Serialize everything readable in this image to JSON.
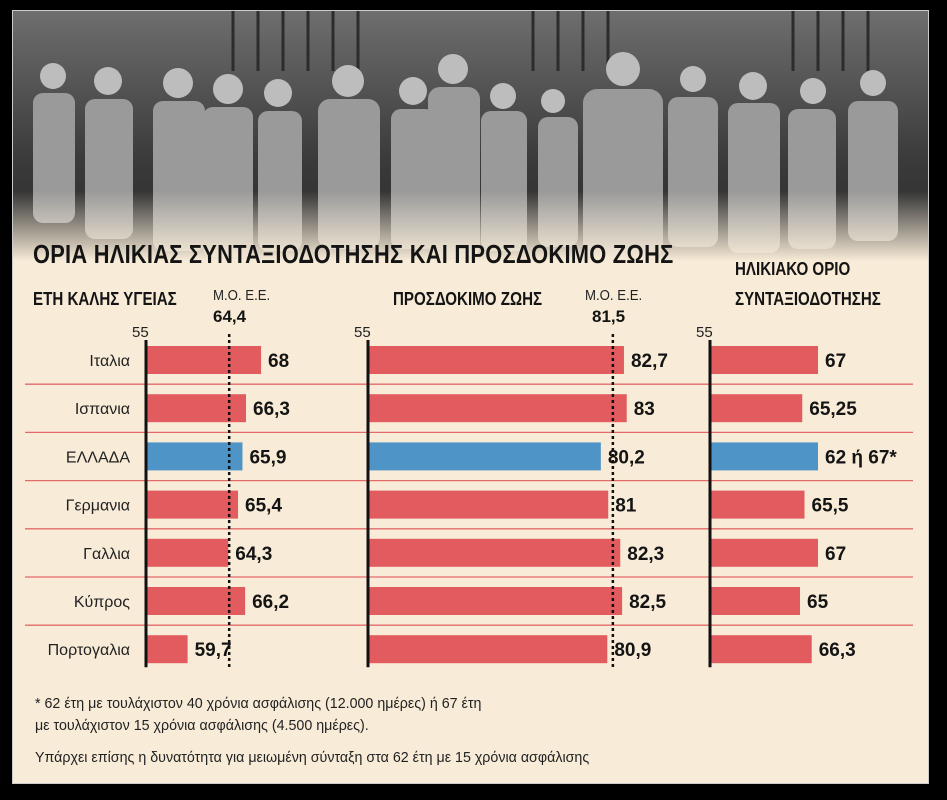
{
  "title": "ΟΡΙΑ ΗΛΙΚΙΑΣ ΣΥΝΤΑΞΙΟΔΟΤΗΣΗΣ ΚΑΙ ΠΡΟΣΔΟΚΙΜΟ ΖΩΗΣ",
  "panels": [
    {
      "header_line1": "ΕΤΗ ΚΑΛΗΣ ΥΓΕΙΑΣ",
      "header_line2": "",
      "avg_label": "Μ.Ο. Ε.Ε.",
      "avg_value": "64,4",
      "axis_start": "55"
    },
    {
      "header_line1": "ΠΡΟΣΔΟΚΙΜΟ ΖΩΗΣ",
      "header_line2": "",
      "avg_label": "Μ.Ο. Ε.Ε.",
      "avg_value": "81,5",
      "axis_start": "55"
    },
    {
      "header_line1": "ΗΛΙΚΙΑΚΟ ΟΡΙΟ",
      "header_line2": "ΣΥΝΤΑΞΙΟΔΟΤΗΣΗΣ",
      "avg_label": "",
      "avg_value": "",
      "axis_start": "55"
    }
  ],
  "chart_data": [
    {
      "type": "bar",
      "orientation": "horizontal",
      "title": "ΕΤΗ ΚΑΛΗΣ ΥΓΕΙΑΣ",
      "categories": [
        "Ιταλια",
        "Ισπανια",
        "ΕΛΛΑΔΑ",
        "Γερμανια",
        "Γαλλια",
        "Κύπρος",
        "Πορτογαλια"
      ],
      "values": [
        68,
        66.3,
        65.9,
        65.4,
        64.3,
        66.2,
        59.7
      ],
      "value_labels": [
        "68",
        "66,3",
        "65,9",
        "65,4",
        "64,3",
        "66,2",
        "59,7"
      ],
      "highlight_index": 2,
      "reference_line": 64.4,
      "xlim": [
        55,
        68
      ]
    },
    {
      "type": "bar",
      "orientation": "horizontal",
      "title": "ΠΡΟΣΔΟΚΙΜΟ ΖΩΗΣ",
      "categories": [
        "Ιταλια",
        "Ισπανια",
        "ΕΛΛΑΔΑ",
        "Γερμανια",
        "Γαλλια",
        "Κύπρος",
        "Πορτογαλια"
      ],
      "values": [
        82.7,
        83,
        80.2,
        81,
        82.3,
        82.5,
        80.9
      ],
      "value_labels": [
        "82,7",
        "83",
        "80,2",
        "81",
        "82,3",
        "82,5",
        "80,9"
      ],
      "highlight_index": 2,
      "reference_line": 81.5,
      "xlim": [
        55,
        83
      ]
    },
    {
      "type": "bar",
      "orientation": "horizontal",
      "title": "ΗΛΙΚΙΑΚΟ ΟΡΙΟ ΣΥΝΤΑΞΙΟΔΟΤΗΣΗΣ",
      "categories": [
        "Ιταλια",
        "Ισπανια",
        "ΕΛΛΑΔΑ",
        "Γερμανια",
        "Γαλλια",
        "Κύπρος",
        "Πορτογαλια"
      ],
      "values": [
        67,
        65.25,
        67,
        65.5,
        67,
        65,
        66.3
      ],
      "value_labels": [
        "67",
        "65,25",
        "62 ή 67*",
        "65,5",
        "67",
        "65",
        "66,3"
      ],
      "highlight_index": 2,
      "reference_line": null,
      "xlim": [
        55,
        67
      ]
    }
  ],
  "colors": {
    "bar": "#e25b5e",
    "highlight": "#4f94c6",
    "separator": "#e46a6a",
    "axis": "#111111",
    "background": "#f8ecd8"
  },
  "footnotes": [
    "* 62 έτη με τουλάχιστον 40 χρόνια ασφάλισης (12.000 ημέρες) ή 67 έτη",
    "με τουλάχιστον 15 χρόνια ασφάλισης (4.500 ημέρες).",
    "Υπάρχει επίσης η δυνατότητα για μειωμένη σύνταξη στα 62 έτη με 15 χρόνια ασφάλισης"
  ]
}
